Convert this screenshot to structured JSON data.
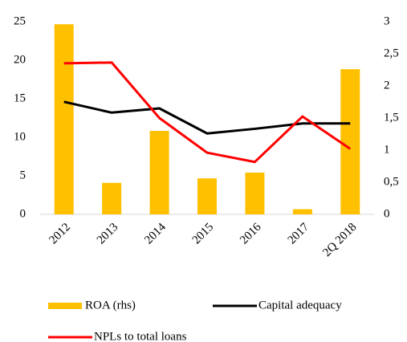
{
  "chart_data": {
    "type": "bar_line",
    "categories": [
      "2012",
      "2013",
      "2014",
      "2015",
      "2016",
      "2017",
      "2Q 2018"
    ],
    "series": [
      {
        "name": "ROA (rhs)",
        "type": "bar",
        "axis": "y2",
        "color": "#ffc000",
        "values": [
          2.96,
          0.49,
          1.3,
          0.56,
          0.65,
          0.08,
          2.26
        ]
      },
      {
        "name": "Capital adequacy",
        "type": "line",
        "color": "#000000",
        "values": [
          14.6,
          13.2,
          13.75,
          10.5,
          11.1,
          11.8,
          11.8
        ]
      },
      {
        "name": "NPLs to total loans",
        "type": "line",
        "color": "#ff0000",
        "values": [
          19.6,
          19.7,
          12.5,
          8.0,
          6.8,
          12.7,
          8.5
        ]
      }
    ],
    "ylim": [
      0,
      25
    ],
    "yticks": [
      0,
      5,
      10,
      15,
      20,
      25
    ],
    "y2lim": [
      0,
      3
    ],
    "y2ticks": [
      0,
      {
        "value": 0.5,
        "label": "0,5"
      },
      1,
      {
        "value": 1.5,
        "label": "1,5"
      },
      2,
      {
        "value": 2.5,
        "label": "2,5"
      },
      3
    ],
    "grid": false,
    "legend": "bottom"
  }
}
